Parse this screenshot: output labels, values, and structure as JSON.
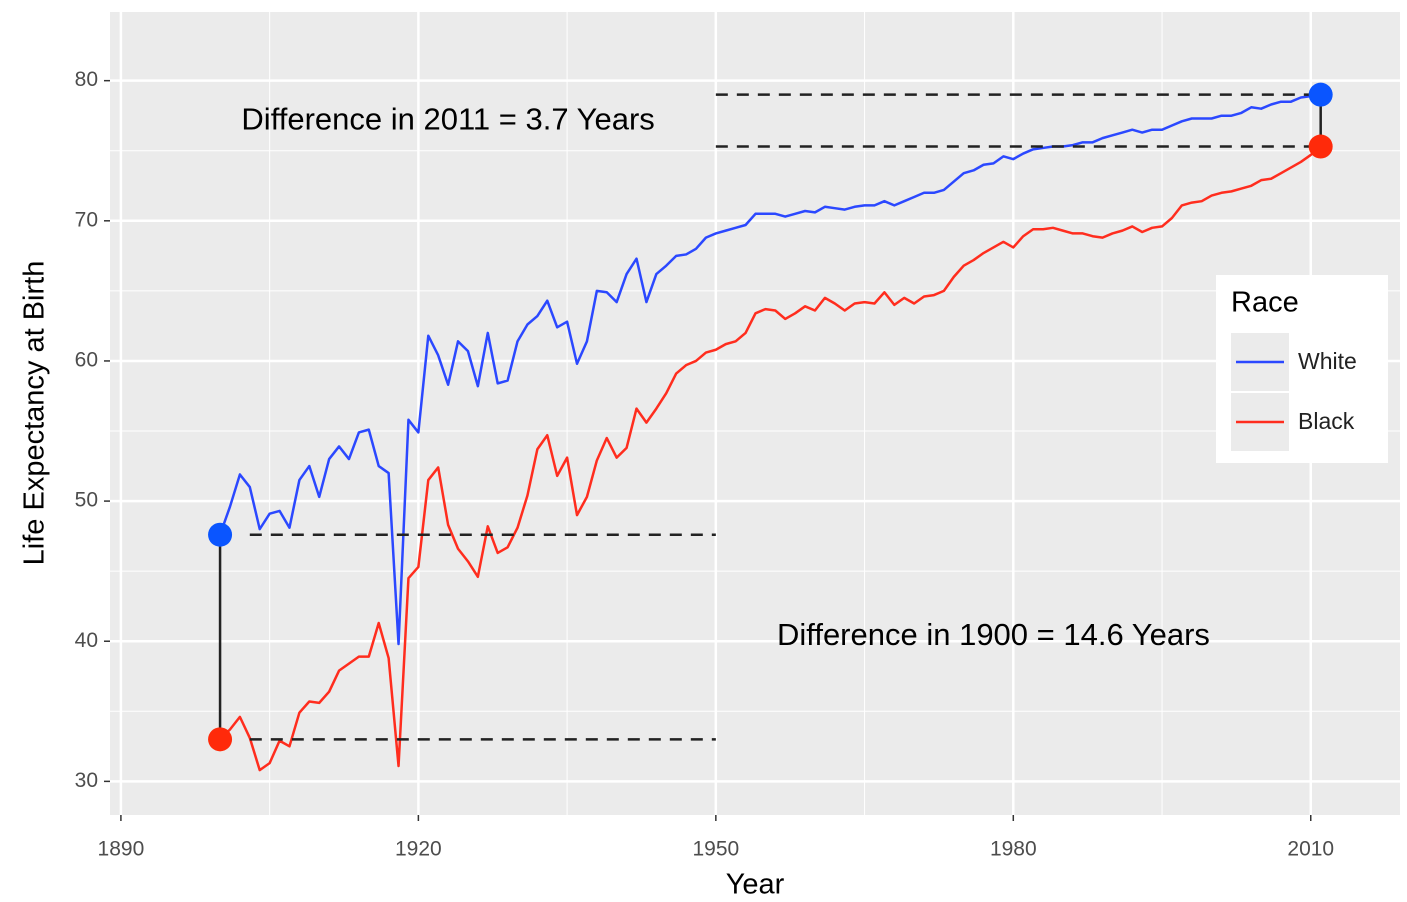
{
  "chart_data": {
    "type": "line",
    "xlabel": "Year",
    "ylabel": "Life Expectancy at Birth",
    "x": [
      1900,
      1901,
      1902,
      1903,
      1904,
      1905,
      1906,
      1907,
      1908,
      1909,
      1910,
      1911,
      1912,
      1913,
      1914,
      1915,
      1916,
      1917,
      1918,
      1919,
      1920,
      1921,
      1922,
      1923,
      1924,
      1925,
      1926,
      1927,
      1928,
      1929,
      1930,
      1931,
      1932,
      1933,
      1934,
      1935,
      1936,
      1937,
      1938,
      1939,
      1940,
      1941,
      1942,
      1943,
      1944,
      1945,
      1946,
      1947,
      1948,
      1949,
      1950,
      1951,
      1952,
      1953,
      1954,
      1955,
      1956,
      1957,
      1958,
      1959,
      1960,
      1961,
      1962,
      1963,
      1964,
      1965,
      1966,
      1967,
      1968,
      1969,
      1970,
      1971,
      1972,
      1973,
      1974,
      1975,
      1976,
      1977,
      1978,
      1979,
      1980,
      1981,
      1982,
      1983,
      1984,
      1985,
      1986,
      1987,
      1988,
      1989,
      1990,
      1991,
      1992,
      1993,
      1994,
      1995,
      1996,
      1997,
      1998,
      1999,
      2000,
      2001,
      2002,
      2003,
      2004,
      2005,
      2006,
      2007,
      2008,
      2009,
      2010,
      2011
    ],
    "series": [
      {
        "name": "White",
        "color": "#2b48ff",
        "values": [
          47.6,
          49.6,
          51.9,
          51.0,
          48.0,
          49.1,
          49.3,
          48.1,
          51.5,
          52.5,
          50.3,
          53.0,
          53.9,
          53.0,
          54.9,
          55.1,
          52.5,
          52.0,
          39.8,
          55.8,
          54.9,
          61.8,
          60.4,
          58.3,
          61.4,
          60.7,
          58.2,
          62.0,
          58.4,
          58.6,
          61.4,
          62.6,
          63.2,
          64.3,
          62.4,
          62.8,
          59.8,
          61.4,
          65.0,
          64.9,
          64.2,
          66.2,
          67.3,
          64.2,
          66.2,
          66.8,
          67.5,
          67.6,
          68.0,
          68.8,
          69.1,
          69.3,
          69.5,
          69.7,
          70.5,
          70.5,
          70.5,
          70.3,
          70.5,
          70.7,
          70.6,
          71.0,
          70.9,
          70.8,
          71.0,
          71.1,
          71.1,
          71.4,
          71.1,
          71.4,
          71.7,
          72.0,
          72.0,
          72.2,
          72.8,
          73.4,
          73.6,
          74.0,
          74.1,
          74.6,
          74.4,
          74.8,
          75.1,
          75.2,
          75.3,
          75.3,
          75.4,
          75.6,
          75.6,
          75.9,
          76.1,
          76.3,
          76.5,
          76.3,
          76.5,
          76.5,
          76.8,
          77.1,
          77.3,
          77.3,
          77.3,
          77.5,
          77.5,
          77.7,
          78.1,
          78.0,
          78.3,
          78.5,
          78.5,
          78.8,
          78.9,
          79.0
        ]
      },
      {
        "name": "Black",
        "color": "#ff2d1e",
        "values": [
          33.0,
          33.7,
          34.6,
          33.1,
          30.8,
          31.3,
          32.9,
          32.5,
          34.9,
          35.7,
          35.6,
          36.4,
          37.9,
          38.4,
          38.9,
          38.9,
          41.3,
          38.8,
          31.1,
          44.5,
          45.3,
          51.5,
          52.4,
          48.3,
          46.6,
          45.7,
          44.6,
          48.2,
          46.3,
          46.7,
          48.1,
          50.4,
          53.7,
          54.7,
          51.8,
          53.1,
          49.0,
          50.3,
          52.9,
          54.5,
          53.1,
          53.8,
          56.6,
          55.6,
          56.6,
          57.7,
          59.1,
          59.7,
          60.0,
          60.6,
          60.8,
          61.2,
          61.4,
          62.0,
          63.4,
          63.7,
          63.6,
          63.0,
          63.4,
          63.9,
          63.6,
          64.5,
          64.1,
          63.6,
          64.1,
          64.2,
          64.1,
          64.9,
          64.0,
          64.5,
          64.1,
          64.6,
          64.7,
          65.0,
          66.0,
          66.8,
          67.2,
          67.7,
          68.1,
          68.5,
          68.1,
          68.9,
          69.4,
          69.4,
          69.5,
          69.3,
          69.1,
          69.1,
          68.9,
          68.8,
          69.1,
          69.3,
          69.6,
          69.2,
          69.5,
          69.6,
          70.2,
          71.1,
          71.3,
          71.4,
          71.8,
          72.0,
          72.1,
          72.3,
          72.5,
          72.9,
          73.0,
          73.4,
          73.8,
          74.2,
          74.7,
          75.3
        ]
      }
    ],
    "xlim": [
      1888.9,
      2019
    ],
    "ylim": [
      27.6,
      84.9
    ],
    "xticks": [
      1890,
      1920,
      1950,
      1980,
      2010
    ],
    "yticks": [
      30,
      40,
      50,
      60,
      70,
      80
    ],
    "x_minor_grid": [
      1905,
      1935,
      1965,
      1995
    ],
    "y_minor_grid": [
      35,
      45,
      55,
      65,
      75
    ],
    "grid": true,
    "segments": [
      {
        "x": [
          1903,
          1950
        ],
        "y": [
          47.6,
          47.6
        ],
        "dashed": true
      },
      {
        "x": [
          1903,
          1950
        ],
        "y": [
          33.0,
          33.0
        ],
        "dashed": true
      },
      {
        "x": [
          1950,
          2011
        ],
        "y": [
          79.0,
          79.0
        ],
        "dashed": true
      },
      {
        "x": [
          1950,
          2011
        ],
        "y": [
          75.3,
          75.3
        ],
        "dashed": true
      },
      {
        "x": [
          1900,
          1900
        ],
        "y": [
          33.0,
          47.6
        ],
        "dashed": false
      },
      {
        "x": [
          2011,
          2011
        ],
        "y": [
          75.3,
          79.0
        ],
        "dashed": false
      }
    ],
    "points": [
      {
        "x": 1900,
        "y": 47.6,
        "color": "#0a55ff"
      },
      {
        "x": 1900,
        "y": 33.0,
        "color": "#ff2a0a"
      },
      {
        "x": 2011,
        "y": 79.0,
        "color": "#0a55ff"
      },
      {
        "x": 2011,
        "y": 75.3,
        "color": "#ff2a0a"
      }
    ],
    "annotations": [
      {
        "text": "Difference in 2011 = 3.7 Years",
        "x": 1923,
        "y": 77.1
      },
      {
        "text": "Difference in 1900 = 14.6 Years",
        "x": 1978,
        "y": 40.3
      }
    ],
    "legend": {
      "title": "Race",
      "position": "right"
    }
  }
}
